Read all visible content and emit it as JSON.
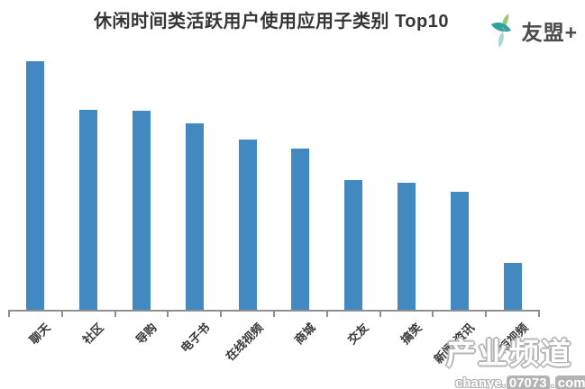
{
  "header": {
    "title": "休闲时间类活跃用户使用应用子类别 Top10",
    "logo_text": "友盟+"
  },
  "chart_data": {
    "type": "bar",
    "title": "休闲时间类活跃用户使用应用子类别 Top10",
    "categories": [
      "聊天",
      "社区",
      "导购",
      "电子书",
      "在线视频",
      "商城",
      "交友",
      "搞笑",
      "新闻·资讯",
      "短视频"
    ],
    "values": [
      100,
      80.5,
      80,
      75,
      68.5,
      65,
      52,
      51,
      47.5,
      19
    ],
    "value_note": "no value axis shown in image; values are relative bar heights with tallest bar = 100",
    "xlabel": "",
    "ylabel": "",
    "ylim": [
      0,
      100
    ],
    "grid": false,
    "legend": false,
    "bar_color": "#4288c1",
    "axis_color": "#8f8f8f"
  },
  "watermark": {
    "line1": "产业频道",
    "parts": [
      {
        "text": "chanye.",
        "style": "outline"
      },
      {
        "text": "07073",
        "style": "box"
      },
      {
        "text": ".",
        "style": "outline"
      },
      {
        "text": "com",
        "style": "box"
      }
    ]
  }
}
